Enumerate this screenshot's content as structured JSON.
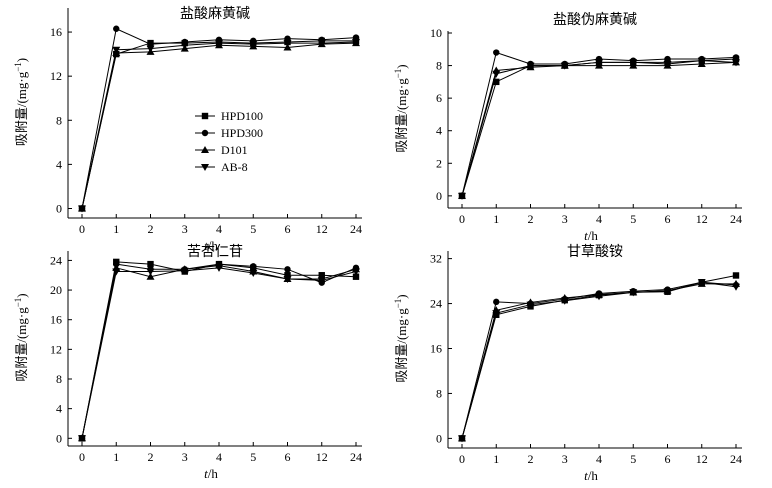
{
  "figure": {
    "xlabel_italic": "t",
    "xlabel_unit": "/h",
    "ylabel_main": "吸附量/(mg·g",
    "ylabel_sup": "−1",
    "ylabel_close": ")"
  },
  "legend": {
    "items": [
      {
        "name": "HPD100",
        "marker": "square"
      },
      {
        "name": "HPD300",
        "marker": "circle"
      },
      {
        "name": "D101",
        "marker": "triangle-up"
      },
      {
        "name": "AB-8",
        "marker": "triangle-down"
      }
    ]
  },
  "chart_data": [
    {
      "type": "line",
      "title": "盐酸麻黄碱",
      "categories": [
        "0",
        "1",
        "2",
        "3",
        "4",
        "5",
        "6",
        "12",
        "24"
      ],
      "ylim": [
        -0.5,
        18
      ],
      "yticks": [
        0,
        4,
        8,
        12,
        16
      ],
      "series": [
        {
          "name": "HPD100",
          "values": [
            0,
            14.0,
            15.0,
            15.0,
            15.1,
            15.0,
            15.1,
            15.2,
            15.2
          ]
        },
        {
          "name": "HPD300",
          "values": [
            0,
            16.3,
            14.9,
            15.1,
            15.3,
            15.2,
            15.4,
            15.3,
            15.5
          ]
        },
        {
          "name": "D101",
          "values": [
            0,
            14.1,
            14.2,
            14.5,
            14.8,
            14.7,
            14.6,
            14.9,
            15.0
          ]
        },
        {
          "name": "AB-8",
          "values": [
            0,
            14.4,
            14.5,
            14.8,
            15.0,
            14.9,
            15.0,
            15.0,
            15.1
          ]
        }
      ]
    },
    {
      "type": "line",
      "title": "盐酸伪麻黄碱",
      "categories": [
        "0",
        "1",
        "2",
        "3",
        "4",
        "5",
        "6",
        "12",
        "24"
      ],
      "ylim": [
        -0.5,
        10
      ],
      "yticks": [
        0,
        2,
        4,
        6,
        8,
        10
      ],
      "series": [
        {
          "name": "HPD100",
          "values": [
            0,
            7.0,
            8.0,
            8.0,
            8.2,
            8.2,
            8.2,
            8.3,
            8.4
          ]
        },
        {
          "name": "HPD300",
          "values": [
            0,
            8.8,
            8.1,
            8.1,
            8.4,
            8.3,
            8.4,
            8.4,
            8.5
          ]
        },
        {
          "name": "D101",
          "values": [
            0,
            7.7,
            7.9,
            8.0,
            8.0,
            8.0,
            8.0,
            8.1,
            8.2
          ]
        },
        {
          "name": "AB-8",
          "values": [
            0,
            7.5,
            8.0,
            8.0,
            8.2,
            8.2,
            8.1,
            8.3,
            8.2
          ]
        }
      ]
    },
    {
      "type": "line",
      "title": "苦杏仁苷",
      "categories": [
        "0",
        "1",
        "2",
        "3",
        "4",
        "5",
        "6",
        "12",
        "24"
      ],
      "ylim": [
        -0.5,
        25
      ],
      "yticks": [
        0,
        4,
        8,
        12,
        16,
        20,
        24
      ],
      "series": [
        {
          "name": "HPD100",
          "values": [
            0,
            23.8,
            23.5,
            22.5,
            23.5,
            23.0,
            22.0,
            22.0,
            21.8
          ]
        },
        {
          "name": "HPD300",
          "values": [
            0,
            23.5,
            22.8,
            22.8,
            23.5,
            23.2,
            22.8,
            21.0,
            23.0
          ]
        },
        {
          "name": "D101",
          "values": [
            0,
            23.0,
            21.8,
            22.8,
            23.3,
            22.5,
            21.5,
            21.5,
            22.8
          ]
        },
        {
          "name": "AB-8",
          "values": [
            0,
            22.5,
            22.5,
            22.6,
            23.0,
            22.3,
            21.5,
            21.3,
            22.5
          ]
        }
      ]
    },
    {
      "type": "line",
      "title": "甘草酸铵",
      "categories": [
        "0",
        "1",
        "2",
        "3",
        "4",
        "5",
        "6",
        "12",
        "24"
      ],
      "ylim": [
        -1,
        33
      ],
      "yticks": [
        0,
        8,
        16,
        24,
        32
      ],
      "series": [
        {
          "name": "HPD100",
          "values": [
            0,
            22.0,
            23.5,
            24.6,
            25.5,
            26.0,
            26.1,
            27.8,
            29.0
          ]
        },
        {
          "name": "HPD300",
          "values": [
            0,
            24.3,
            24.0,
            24.8,
            25.8,
            26.2,
            26.5,
            27.8,
            27.3
          ]
        },
        {
          "name": "D101",
          "values": [
            0,
            22.8,
            24.2,
            25.0,
            25.6,
            26.0,
            26.3,
            27.5,
            27.5
          ]
        },
        {
          "name": "AB-8",
          "values": [
            0,
            22.3,
            23.8,
            24.5,
            25.3,
            26.0,
            26.2,
            27.8,
            27.0
          ]
        }
      ]
    }
  ]
}
